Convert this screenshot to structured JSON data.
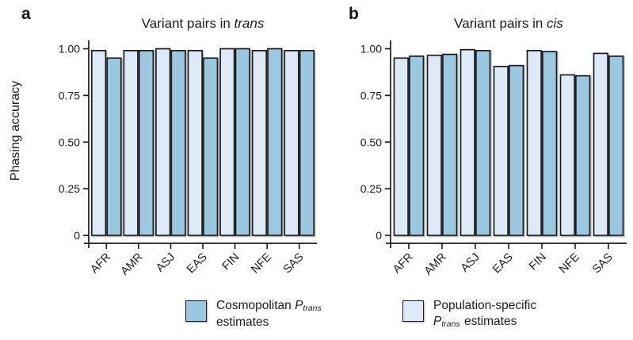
{
  "figure": {
    "ylabel": "Phasing accuracy",
    "panels": [
      {
        "letter": "a",
        "title_prefix": "Variant pairs in ",
        "title_italic": "trans",
        "legend": {
          "line1": "Cosmopolitan ",
          "symbol": "P",
          "symbol_sub": "trans",
          "line2": "estimates",
          "swatch_color": "#9cc7e0"
        }
      },
      {
        "letter": "b",
        "title_prefix": "Variant pairs in ",
        "title_italic": "cis",
        "legend": {
          "line1": "Population-specific",
          "symbol": "P",
          "symbol_sub": "trans",
          "line2": " estimates",
          "swatch_color": "#dde9f6"
        }
      }
    ]
  },
  "chart_data": [
    {
      "type": "bar",
      "panel": "a",
      "title": "Variant pairs in trans",
      "xlabel": "",
      "ylabel": "Phasing accuracy",
      "ylim": [
        0,
        1
      ],
      "grid": false,
      "legend_position": "below",
      "categories": [
        "AFR",
        "AMR",
        "ASJ",
        "EAS",
        "FIN",
        "NFE",
        "SAS"
      ],
      "ytick_values": [
        0,
        0.25,
        0.5,
        0.75,
        1.0
      ],
      "ytick_labels": [
        "0",
        "0.25",
        "0.50",
        "0.75",
        "1.00"
      ],
      "series": [
        {
          "name": "Population-specific Ptrans estimates",
          "color": "#dde9f6",
          "values": [
            0.99,
            0.99,
            1.0,
            0.99,
            1.0,
            0.99,
            0.99
          ]
        },
        {
          "name": "Cosmopolitan Ptrans estimates",
          "color": "#9cc7e0",
          "values": [
            0.95,
            0.99,
            0.99,
            0.95,
            1.0,
            1.0,
            0.99
          ]
        }
      ]
    },
    {
      "type": "bar",
      "panel": "b",
      "title": "Variant pairs in cis",
      "xlabel": "",
      "ylabel": "Phasing accuracy",
      "ylim": [
        0,
        1
      ],
      "grid": false,
      "legend_position": "below",
      "categories": [
        "AFR",
        "AMR",
        "ASJ",
        "EAS",
        "FIN",
        "NFE",
        "SAS"
      ],
      "ytick_values": [
        0,
        0.25,
        0.5,
        0.75,
        1.0
      ],
      "ytick_labels": [
        "0",
        "0.25",
        "0.50",
        "0.75",
        "1.00"
      ],
      "series": [
        {
          "name": "Population-specific Ptrans estimates",
          "color": "#dde9f6",
          "values": [
            0.95,
            0.965,
            0.995,
            0.905,
            0.99,
            0.86,
            0.975
          ]
        },
        {
          "name": "Cosmopolitan Ptrans estimates",
          "color": "#9cc7e0",
          "values": [
            0.96,
            0.97,
            0.99,
            0.91,
            0.985,
            0.855,
            0.96
          ]
        }
      ]
    }
  ]
}
